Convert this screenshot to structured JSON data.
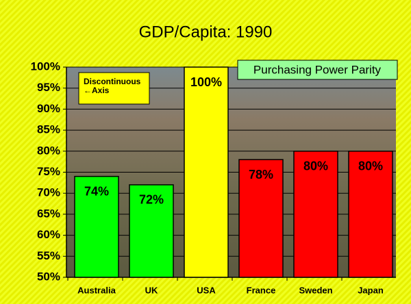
{
  "chart_data": {
    "type": "bar",
    "title": "GDP/Capita: 1990",
    "categories": [
      "Australia",
      "UK",
      "USA",
      "France",
      "Sweden",
      "Japan"
    ],
    "values": [
      74,
      72,
      100,
      78,
      80,
      80
    ],
    "value_labels": [
      "74%",
      "72%",
      "100%",
      "78%",
      "80%",
      "80%"
    ],
    "colors": [
      "#00ff00",
      "#00ff00",
      "#ffff00",
      "#ff0000",
      "#ff0000",
      "#ff0000"
    ],
    "ylim": [
      50,
      100
    ],
    "yticks": [
      {
        "value": 50,
        "label": "50%"
      },
      {
        "value": 55,
        "label": "55%"
      },
      {
        "value": 60,
        "label": "60%"
      },
      {
        "value": 65,
        "label": "65%"
      },
      {
        "value": 70,
        "label": "70%"
      },
      {
        "value": 75,
        "label": "75%"
      },
      {
        "value": 80,
        "label": "80%"
      },
      {
        "value": 85,
        "label": "85%"
      },
      {
        "value": 90,
        "label": "90%"
      },
      {
        "value": 95,
        "label": "95%"
      },
      {
        "value": 100,
        "label": "100%"
      }
    ],
    "grid": true,
    "annotations": [
      [
        "Discontinuous",
        "←Axis"
      ],
      [
        "Purchasing Power Parity"
      ]
    ]
  }
}
